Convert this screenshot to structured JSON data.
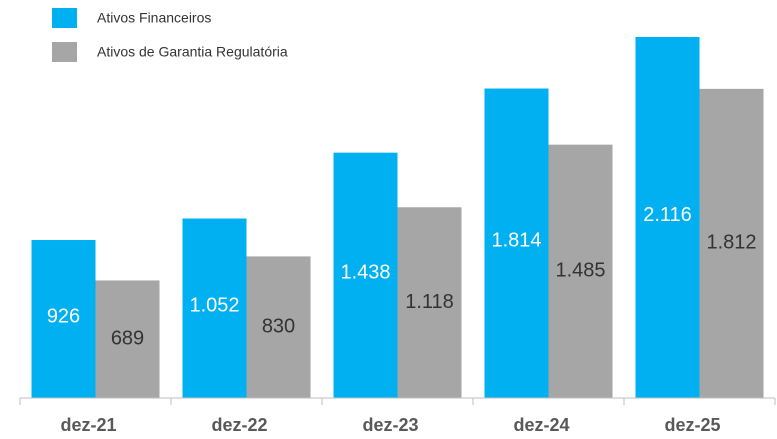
{
  "chart_data": {
    "type": "bar",
    "categories": [
      "dez-21",
      "dez-22",
      "dez-23",
      "dez-24",
      "dez-25"
    ],
    "series": [
      {
        "name": "Ativos Financeiros",
        "color": "#00b0f0",
        "values": [
          926,
          1052,
          1438,
          1814,
          2116
        ],
        "value_labels": [
          "926",
          "1.052",
          "1.438",
          "1.814",
          "2.116"
        ]
      },
      {
        "name": "Ativos de Garantia Regulatória",
        "color": "#a6a6a6",
        "values": [
          689,
          830,
          1118,
          1485,
          1812
        ],
        "value_labels": [
          "689",
          "830",
          "1.118",
          "1.485",
          "1.812"
        ]
      }
    ]
  }
}
